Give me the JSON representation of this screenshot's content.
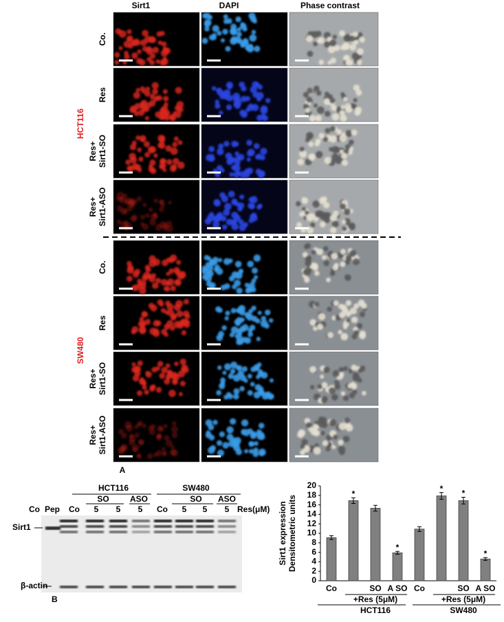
{
  "figure": {
    "panel_a": {
      "label": "A",
      "columns": [
        "Sirt1",
        "DAPI",
        "Phase contrast"
      ],
      "groups": [
        {
          "name": "HCT116",
          "rows": [
            [
              "Co."
            ],
            [
              "Res"
            ],
            [
              "Res+",
              "Sirt1-SO"
            ],
            [
              "Res+",
              "Sirt1-ASO"
            ]
          ]
        },
        {
          "name": "SW480",
          "rows": [
            [
              "Co."
            ],
            [
              "Res"
            ],
            [
              "Res+",
              "Sirt1-SO"
            ],
            [
              "Res+",
              "Sirt1-ASO"
            ]
          ]
        }
      ]
    },
    "panel_b": {
      "label": "B",
      "cell_lines": [
        "HCT116",
        "SW480"
      ],
      "treatments": [
        "SO",
        "ASO",
        "SO",
        "ASO"
      ],
      "lanes": [
        "Co",
        "Pep",
        "Co",
        "5",
        "5",
        "5",
        "Co",
        "5",
        "5",
        "5"
      ],
      "unit_label": "Res(μM)",
      "bands": [
        "Sirt1",
        "β-actin"
      ]
    }
  },
  "chart_data": {
    "type": "bar",
    "y_label": [
      "Sirt1 expression",
      "Densitometric units"
    ],
    "categories": [
      "Co",
      null,
      "SO",
      "A SO",
      "Co",
      null,
      "SO",
      "A SO"
    ],
    "values": [
      9.1,
      16.9,
      15.3,
      5.9,
      10.9,
      17.9,
      16.9,
      4.6
    ],
    "errors": [
      0.4,
      0.6,
      0.6,
      0.3,
      0.5,
      0.7,
      0.7,
      0.3
    ],
    "markers": [
      null,
      "*",
      null,
      "*",
      null,
      "*",
      "*",
      "*"
    ],
    "treatment_label": "+Res (5μM)",
    "groups": [
      "HCT116",
      "SW480"
    ],
    "color": "#808080",
    "ylim": [
      0,
      20
    ],
    "yticks": [
      0,
      2,
      4,
      6,
      8,
      10,
      12,
      14,
      16,
      18,
      20
    ]
  }
}
